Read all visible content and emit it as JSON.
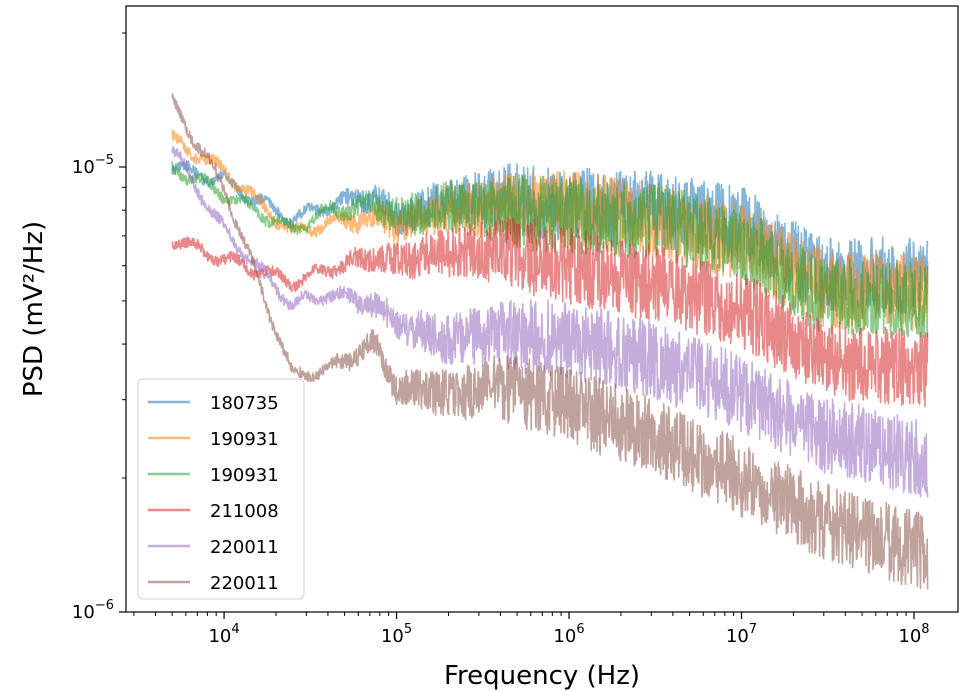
{
  "chart_data": {
    "type": "line",
    "xlabel": "Frequency (Hz)",
    "ylabel": "PSD (mV²/Hz)",
    "x_scale": "log",
    "y_scale": "log",
    "xlim": [
      2700,
      180000000
    ],
    "ylim": [
      1e-06,
      2.3e-05
    ],
    "x_ticks": [
      {
        "value": 10000,
        "base": "10",
        "exp": "4"
      },
      {
        "value": 100000,
        "base": "10",
        "exp": "5"
      },
      {
        "value": 1000000,
        "base": "10",
        "exp": "6"
      },
      {
        "value": 10000000,
        "base": "10",
        "exp": "7"
      },
      {
        "value": 100000000,
        "base": "10",
        "exp": "8"
      }
    ],
    "y_ticks": [
      {
        "value": 1e-06,
        "base": "10",
        "exp": "−6"
      },
      {
        "value": 1e-05,
        "base": "10",
        "exp": "−5"
      }
    ],
    "grid": false,
    "legend_position": "lower-left",
    "series": [
      {
        "name": "180735",
        "color": "#1f77b4",
        "x": [
          5000,
          10000,
          25000,
          40000,
          75000,
          100000,
          200000,
          400000,
          1000000,
          3000000,
          10000000,
          30000000,
          120000000
        ],
        "y": [
          1e-05,
          9.3e-06,
          7.6e-06,
          8.2e-06,
          8.6e-06,
          7.6e-06,
          8.4e-06,
          8.6e-06,
          8.2e-06,
          8e-06,
          7.4e-06,
          5.7e-06,
          5.7e-06
        ]
      },
      {
        "name": "190931",
        "color": "#ff7f0e",
        "x": [
          5000,
          10000,
          25000,
          40000,
          75000,
          100000,
          200000,
          400000,
          1000000,
          3000000,
          10000000,
          30000000,
          120000000
        ],
        "y": [
          1.15e-05,
          9.8e-06,
          7.1e-06,
          7.5e-06,
          7.7e-06,
          7.4e-06,
          8e-06,
          8.1e-06,
          8e-06,
          7.6e-06,
          6.8e-06,
          5.3e-06,
          5.2e-06
        ]
      },
      {
        "name": "190931",
        "color": "#2ca02c",
        "x": [
          5000,
          10000,
          25000,
          40000,
          75000,
          100000,
          200000,
          400000,
          1000000,
          3000000,
          10000000,
          30000000,
          120000000
        ],
        "y": [
          1e-05,
          8.7e-06,
          7.2e-06,
          8e-06,
          8.2e-06,
          7.8e-06,
          8.1e-06,
          8e-06,
          7.8e-06,
          7.6e-06,
          6.7e-06,
          5.1e-06,
          5e-06
        ]
      },
      {
        "name": "211008",
        "color": "#d62728",
        "x": [
          5000,
          10000,
          25000,
          40000,
          75000,
          100000,
          200000,
          400000,
          1000000,
          3000000,
          10000000,
          30000000,
          120000000
        ],
        "y": [
          6.9e-06,
          6.2e-06,
          5.5e-06,
          5.9e-06,
          6.3e-06,
          6.1e-06,
          6.5e-06,
          6.5e-06,
          6e-06,
          5.5e-06,
          4.8e-06,
          3.7e-06,
          3.5e-06
        ]
      },
      {
        "name": "220011",
        "color": "#9467bd",
        "x": [
          5000,
          10000,
          25000,
          40000,
          75000,
          100000,
          200000,
          400000,
          1000000,
          3000000,
          10000000,
          30000000,
          120000000
        ],
        "y": [
          1.1e-05,
          7.2e-06,
          4.9e-06,
          5.2e-06,
          4.9e-06,
          4.4e-06,
          4.1e-06,
          4.2e-06,
          4.1e-06,
          3.7e-06,
          3.1e-06,
          2.5e-06,
          2.2e-06
        ]
      },
      {
        "name": "220011",
        "color": "#8c564b",
        "x": [
          5000,
          10000,
          25000,
          40000,
          75000,
          100000,
          200000,
          400000,
          1000000,
          3000000,
          10000000,
          30000000,
          120000000
        ],
        "y": [
          1.4e-05,
          9e-06,
          3.4e-06,
          3.5e-06,
          4e-06,
          3.2e-06,
          3.1e-06,
          3.2e-06,
          2.9e-06,
          2.5e-06,
          2e-06,
          1.6e-06,
          1.35e-06
        ]
      }
    ]
  }
}
